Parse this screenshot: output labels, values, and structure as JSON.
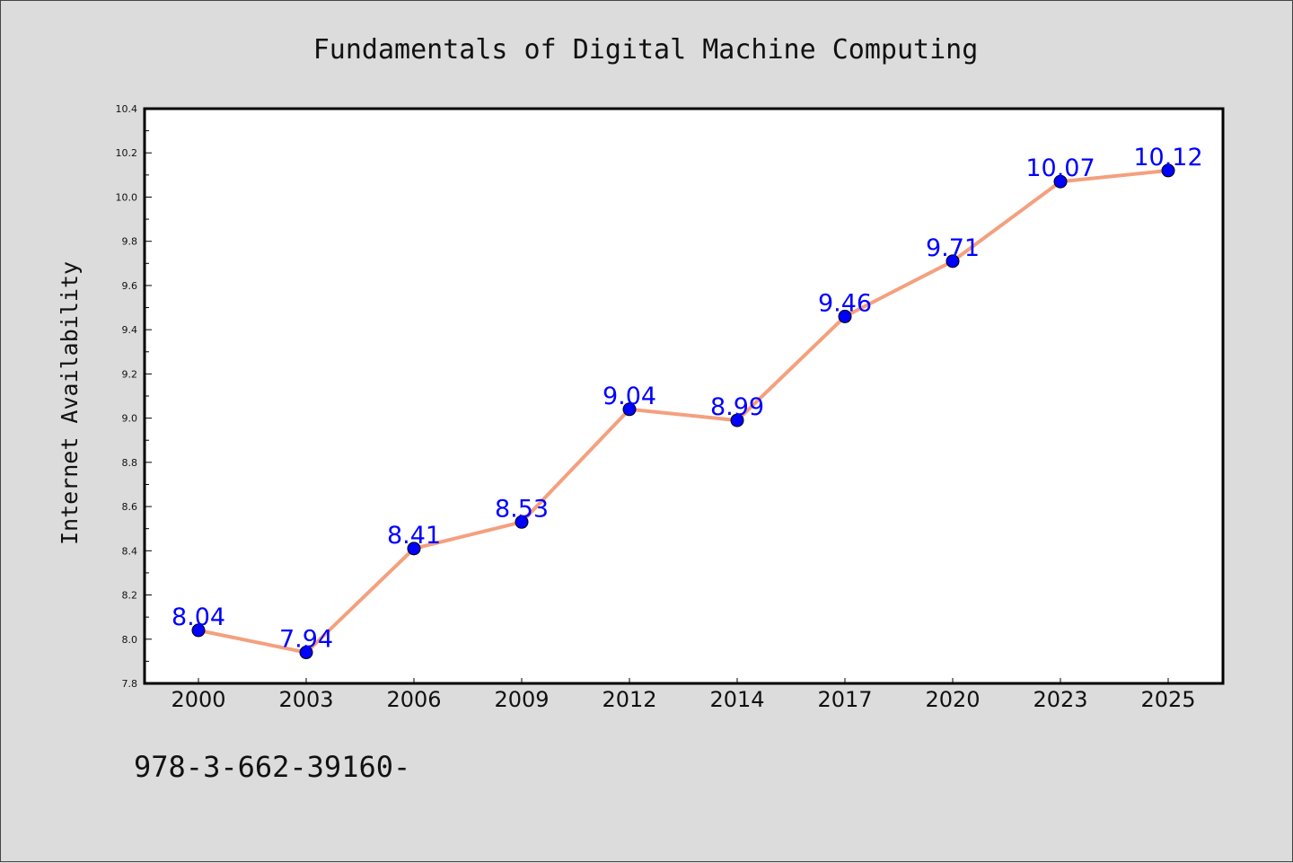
{
  "chart_data": {
    "type": "line",
    "title": "Fundamentals of Digital Machine Computing",
    "xlabel": "",
    "ylabel": "Internet Availability",
    "categories": [
      "2000",
      "2003",
      "2006",
      "2009",
      "2012",
      "2014",
      "2017",
      "2020",
      "2023",
      "2025"
    ],
    "series": [
      {
        "values": [
          8.04,
          7.94,
          8.41,
          8.53,
          9.04,
          8.99,
          9.46,
          9.71,
          10.07,
          10.12
        ],
        "data_labels": [
          "8.04",
          "7.94",
          "8.41",
          "8.53",
          "9.04",
          "8.99",
          "9.46",
          "9.71",
          "10.07",
          "10.12"
        ],
        "line_color": "#f4a07e",
        "marker_color": "#0000ff",
        "label_color": "#0000ff"
      }
    ],
    "ylim": [
      7.8,
      10.4
    ],
    "yticks": [
      "7.8",
      "8.0",
      "8.2",
      "8.4",
      "8.6",
      "8.8",
      "9.0",
      "9.2",
      "9.4",
      "9.6",
      "9.8",
      "10.0",
      "10.2",
      "10.4"
    ],
    "grid": false,
    "legend": "none"
  },
  "footnote": "978-3-662-39160-",
  "colors": {
    "background": "#dcdcdc",
    "plot_area": "#ffffff",
    "axis": "#000000"
  }
}
